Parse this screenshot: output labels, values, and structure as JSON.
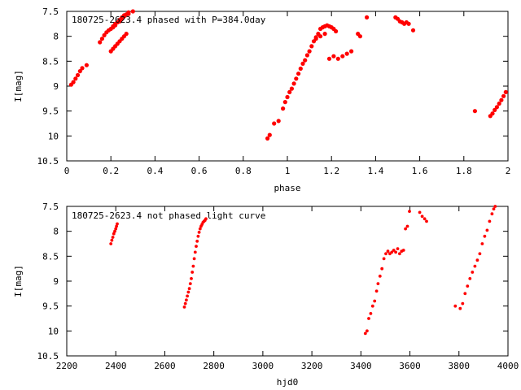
{
  "chart_data": [
    {
      "type": "scatter",
      "title": "180725-2623.4 phased with P=384.0day",
      "xlabel": "phase",
      "ylabel": "I[mag]",
      "xlim": [
        0,
        2
      ],
      "ylim": [
        10.5,
        7.5
      ],
      "y_inverted": true,
      "xticks": [
        "0",
        "0.2",
        "0.4",
        "0.6",
        "0.8",
        "1",
        "1.2",
        "1.4",
        "1.6",
        "1.8",
        "2"
      ],
      "yticks": [
        "7.5",
        "8",
        "8.5",
        "9",
        "9.5",
        "10",
        "10.5"
      ],
      "grid": false,
      "legend": "none",
      "marker_color": "#ff0000",
      "series": [
        {
          "x": [
            0.02,
            0.03,
            0.04,
            0.05,
            0.06,
            0.07,
            0.09,
            0.15,
            0.16,
            0.17,
            0.18,
            0.19,
            0.2,
            0.21,
            0.21,
            0.22,
            0.22,
            0.23,
            0.24,
            0.24,
            0.25,
            0.25,
            0.26,
            0.26,
            0.27,
            0.28,
            0.28,
            0.3,
            0.2,
            0.21,
            0.22,
            0.23,
            0.24,
            0.25,
            0.26,
            0.27,
            0.91,
            0.92,
            0.94,
            0.96,
            0.98,
            0.99,
            1.0,
            1.01,
            1.02,
            1.03,
            1.04,
            1.05,
            1.06,
            1.07,
            1.08,
            1.09,
            1.1,
            1.11,
            1.12,
            1.13,
            1.14,
            1.15,
            1.16,
            1.17,
            1.18,
            1.19,
            1.2,
            1.21,
            1.22,
            1.13,
            1.15,
            1.17,
            1.19,
            1.21,
            1.23,
            1.25,
            1.27,
            1.29,
            1.32,
            1.33,
            1.36,
            1.49,
            1.5,
            1.51,
            1.52,
            1.53,
            1.54,
            1.55,
            1.57,
            1.85,
            1.92,
            1.93,
            1.94,
            1.95,
            1.96,
            1.97,
            1.98,
            1.99
          ],
          "y": [
            8.97,
            8.92,
            8.85,
            8.78,
            8.7,
            8.64,
            8.58,
            8.12,
            8.05,
            7.98,
            7.92,
            7.88,
            7.85,
            7.82,
            7.8,
            7.78,
            7.75,
            7.72,
            7.7,
            7.67,
            7.65,
            7.62,
            7.6,
            7.58,
            7.56,
            7.55,
            7.52,
            7.5,
            8.3,
            8.25,
            8.2,
            8.15,
            8.1,
            8.05,
            8.0,
            7.95,
            10.05,
            9.98,
            9.75,
            9.7,
            9.45,
            9.32,
            9.22,
            9.12,
            9.05,
            8.95,
            8.85,
            8.75,
            8.65,
            8.55,
            8.48,
            8.38,
            8.3,
            8.2,
            8.1,
            8.02,
            7.95,
            7.85,
            7.82,
            7.8,
            7.78,
            7.8,
            7.82,
            7.85,
            7.9,
            8.05,
            8.0,
            7.95,
            8.45,
            8.4,
            8.45,
            8.4,
            8.35,
            8.3,
            7.95,
            8.0,
            7.62,
            7.62,
            7.65,
            7.7,
            7.72,
            7.75,
            7.72,
            7.75,
            7.88,
            9.5,
            9.6,
            9.55,
            9.48,
            9.42,
            9.35,
            9.28,
            9.2,
            9.12
          ]
        }
      ]
    },
    {
      "type": "scatter",
      "title": "180725-2623.4 not phased light curve",
      "xlabel": "hjd0",
      "ylabel": "I[mag]",
      "xlim": [
        2200,
        4000
      ],
      "ylim": [
        10.5,
        7.5
      ],
      "y_inverted": true,
      "xticks": [
        "2200",
        "2400",
        "2600",
        "2800",
        "3000",
        "3200",
        "3400",
        "3600",
        "3800",
        "4000"
      ],
      "yticks": [
        "7.5",
        "8",
        "8.5",
        "9",
        "9.5",
        "10",
        "10.5"
      ],
      "grid": false,
      "legend": "none",
      "marker_color": "#ff0000",
      "series": [
        {
          "x": [
            2380,
            2384,
            2388,
            2392,
            2396,
            2400,
            2403,
            2406,
            2680,
            2684,
            2688,
            2692,
            2696,
            2700,
            2704,
            2708,
            2712,
            2716,
            2720,
            2724,
            2728,
            2732,
            2736,
            2740,
            2744,
            2748,
            2752,
            2756,
            2760,
            2764,
            2768,
            3418,
            3425,
            3432,
            3440,
            3448,
            3456,
            3464,
            3470,
            3478,
            3486,
            3494,
            3502,
            3510,
            3518,
            3526,
            3534,
            3542,
            3550,
            3558,
            3566,
            3574,
            3582,
            3590,
            3598,
            3640,
            3650,
            3660,
            3668,
            3785,
            3805,
            3815,
            3825,
            3835,
            3845,
            3855,
            3865,
            3875,
            3885,
            3895,
            3905,
            3915,
            3925,
            3935,
            3942,
            3948
          ],
          "y": [
            8.25,
            8.18,
            8.12,
            8.05,
            8.0,
            7.95,
            7.9,
            7.85,
            9.52,
            9.45,
            9.38,
            9.3,
            9.22,
            9.15,
            9.05,
            8.95,
            8.82,
            8.7,
            8.55,
            8.42,
            8.3,
            8.2,
            8.1,
            8.02,
            7.95,
            7.9,
            7.86,
            7.82,
            7.8,
            7.78,
            7.75,
            10.05,
            10.0,
            9.75,
            9.65,
            9.5,
            9.4,
            9.2,
            9.05,
            8.9,
            8.75,
            8.55,
            8.45,
            8.4,
            8.45,
            8.42,
            8.38,
            8.42,
            8.35,
            8.45,
            8.4,
            8.38,
            7.95,
            7.9,
            7.6,
            7.62,
            7.7,
            7.75,
            7.8,
            9.5,
            9.55,
            9.45,
            9.25,
            9.1,
            8.95,
            8.82,
            8.7,
            8.58,
            8.45,
            8.25,
            8.1,
            7.98,
            7.8,
            7.65,
            7.55,
            7.5
          ]
        }
      ]
    }
  ]
}
